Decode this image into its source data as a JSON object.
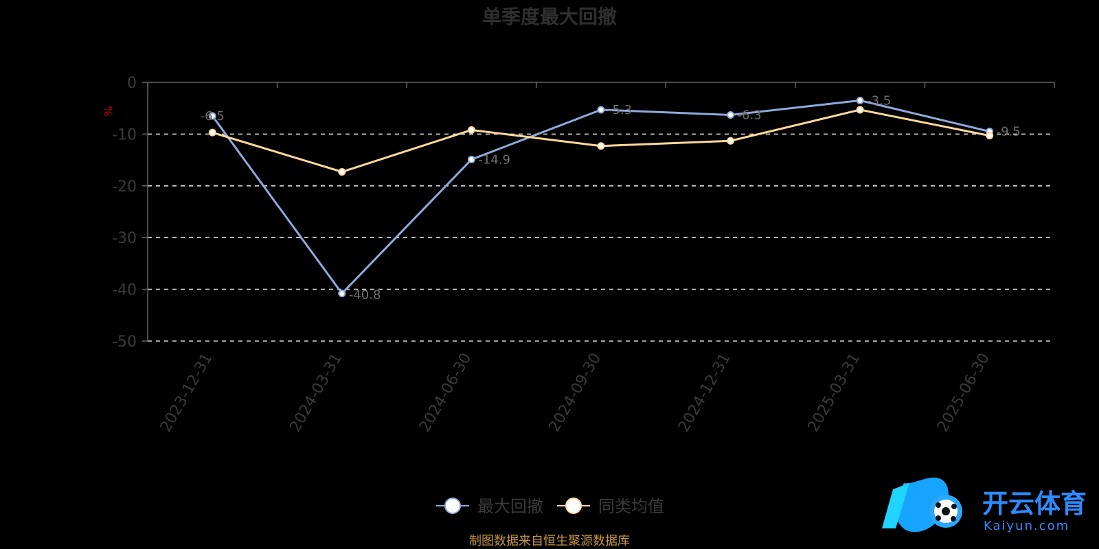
{
  "chart_data": {
    "type": "line",
    "title": "单季度最大回撤",
    "unit": "%",
    "categories": [
      "2023-12-31",
      "2024-03-31",
      "2024-06-30",
      "2024-09-30",
      "2024-12-31",
      "2025-03-31",
      "2025-06-30"
    ],
    "ylim": [
      -50,
      0
    ],
    "yticks": [
      0,
      -10,
      -20,
      -30,
      -40,
      -50
    ],
    "grid": true,
    "legend_position": "bottom-center",
    "series": [
      {
        "name": "最大回撤",
        "color": "#8faadc",
        "values": [
          -6.5,
          -40.8,
          -14.9,
          -5.3,
          -6.3,
          -3.5,
          -9.5
        ],
        "labels": [
          "-6.5",
          "-40.8",
          "-14.9",
          "-5.3",
          "-6.3",
          "-3.5",
          "-9.5"
        ]
      },
      {
        "name": "同类均值",
        "color": "#ffd99a",
        "values": [
          -9.7,
          -17.3,
          -9.2,
          -12.3,
          -11.3,
          -5.3,
          -10.3
        ]
      }
    ]
  },
  "source_note": "制图数据来自恒生聚源数据库",
  "watermark": {
    "brand_cn": "开云体育",
    "brand_en": "Kaiyun.com"
  }
}
